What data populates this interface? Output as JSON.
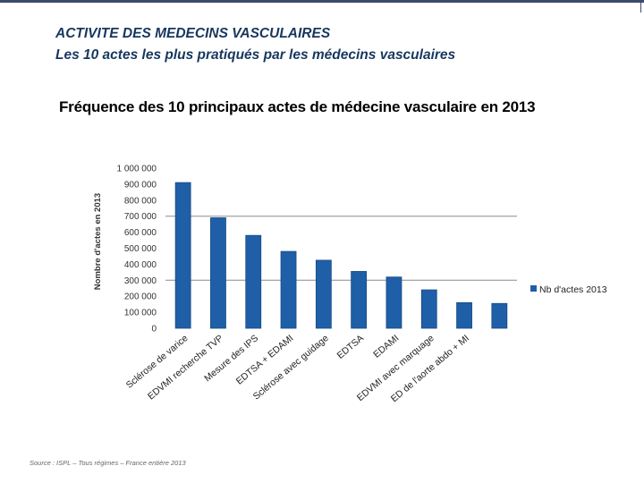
{
  "header": {
    "title": "ACTIVITE DES MEDECINS VASCULAIRES",
    "subtitle": "Les 10 actes les plus pratiqués par les médecins vasculaires"
  },
  "footer": {
    "source": "Source : ISPL – Tous régimes – France entière 2013"
  },
  "colors": {
    "title": "#17375e",
    "bar": "#1f5fa8",
    "bar_edge": "#164a86",
    "gridline": "#8c8c8c"
  },
  "chart_data": {
    "type": "bar",
    "title": "Fréquence des 10 principaux actes de médecine vasculaire en 2013",
    "xlabel": "",
    "ylabel": "Nombre d'actes en 2013",
    "ylim": [
      0,
      1000000
    ],
    "yticks": [
      0,
      100000,
      200000,
      300000,
      400000,
      500000,
      600000,
      700000,
      800000,
      900000,
      1000000
    ],
    "ytick_labels": [
      "0",
      "100 000",
      "200 000",
      "300 000",
      "400 000",
      "500 000",
      "600 000",
      "700 000",
      "800 000",
      "900 000",
      "1 000 000"
    ],
    "gridlines": [
      700000,
      300000
    ],
    "legend": {
      "position": "right",
      "label": "Nb d'actes 2013"
    },
    "categories": [
      "Sclérose de varice",
      "EDVMI recherche TVP",
      "Mesure des IPS",
      "EDTSA + EDAMI",
      "Sclérose avec guidage",
      "EDTSA",
      "EDAMI",
      "EDVMI avec marquage",
      "ED de l'aorte abdo + MI",
      ""
    ],
    "series": [
      {
        "name": "Nb d'actes 2013",
        "values": [
          910000,
          690000,
          580000,
          480000,
          425000,
          355000,
          320000,
          240000,
          160000,
          155000
        ]
      }
    ]
  }
}
